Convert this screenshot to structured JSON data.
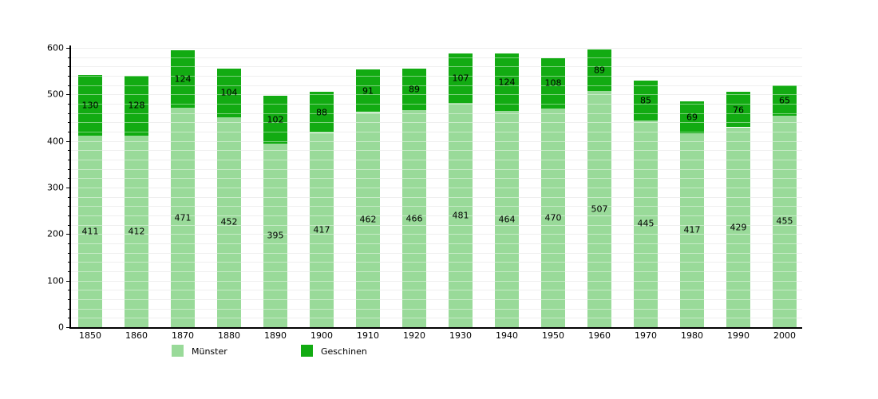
{
  "chart_data": {
    "type": "bar",
    "stacked": true,
    "title": "",
    "xlabel": "",
    "ylabel": "",
    "background": "#ffffff",
    "categories": [
      "1850",
      "1860",
      "1870",
      "1880",
      "1890",
      "1900",
      "1910",
      "1920",
      "1930",
      "1940",
      "1950",
      "1960",
      "1970",
      "1980",
      "1990",
      "2000"
    ],
    "series": [
      {
        "name": "Münster",
        "color": "#99da99",
        "values": [
          411,
          412,
          471,
          452,
          395,
          417,
          462,
          466,
          481,
          464,
          470,
          507,
          445,
          417,
          429,
          455
        ]
      },
      {
        "name": "Geschinen",
        "color": "#12ab12",
        "values": [
          130,
          128,
          124,
          104,
          102,
          88,
          91,
          89,
          107,
          124,
          108,
          89,
          85,
          69,
          76,
          65
        ]
      }
    ],
    "ylim": [
      0,
      600
    ],
    "y_tick_labels": [
      "0",
      "100",
      "200",
      "300",
      "400",
      "500",
      "600"
    ],
    "y_minor_tick_step": 20,
    "grid": "horizontal lines every 20 units, light gray",
    "gridline_color": "#e2e2e2",
    "axis_color": "#000000",
    "legend_position": "bottom-left",
    "bar_value_labels": "black, centered inside each segment"
  }
}
